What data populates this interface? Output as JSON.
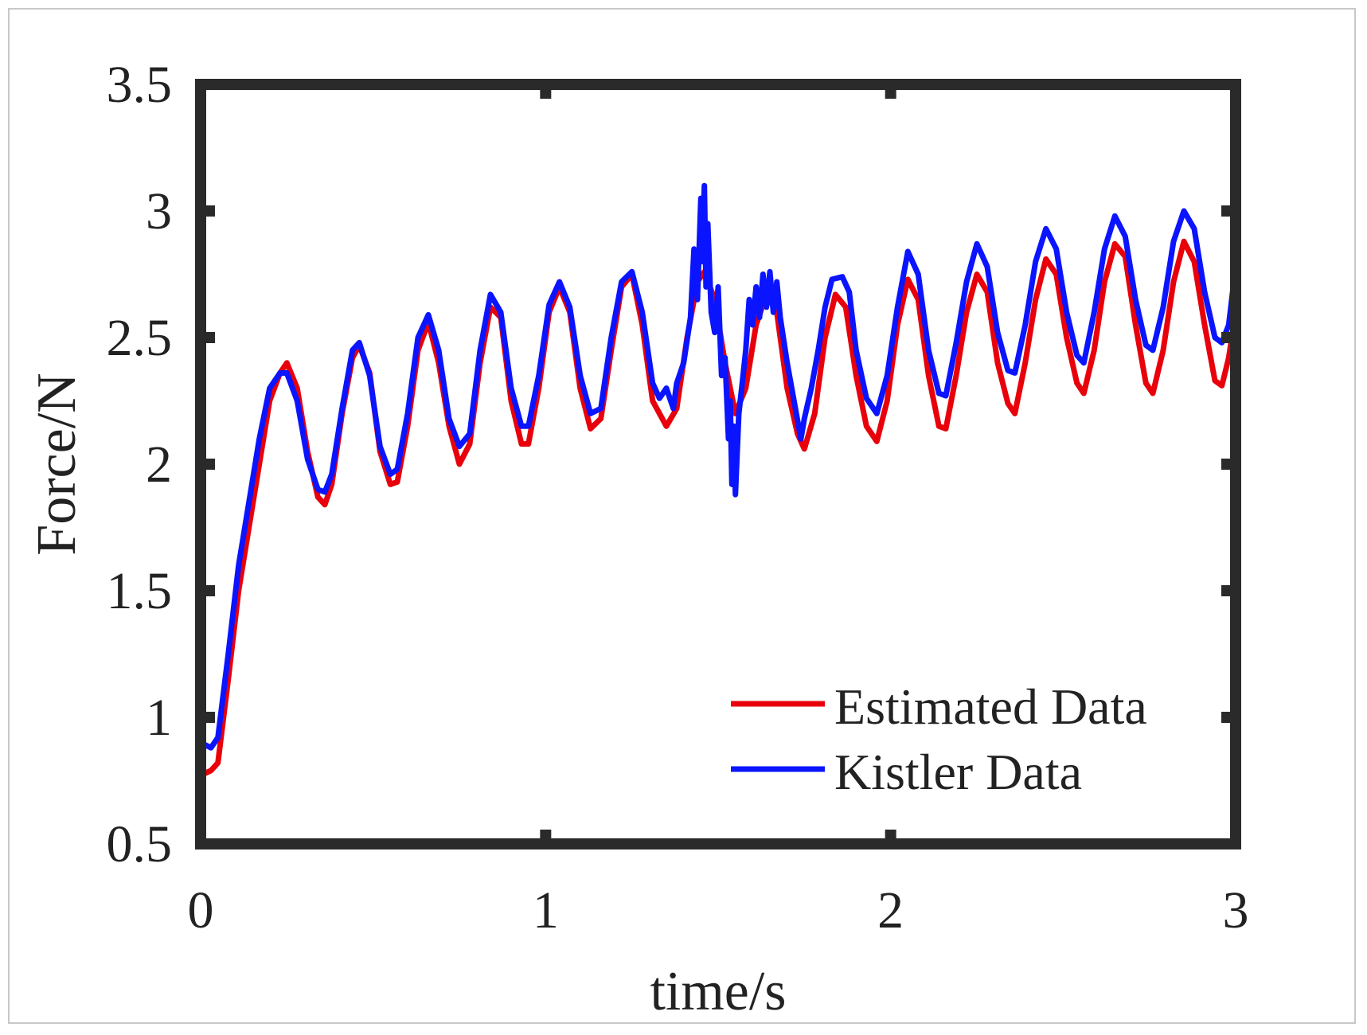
{
  "chart_data": {
    "type": "line",
    "title": "",
    "xlabel": "time/s",
    "ylabel": "Force/N",
    "xlim": [
      0,
      3
    ],
    "ylim": [
      0.5,
      3.5
    ],
    "xticks": [
      0,
      1,
      2,
      3
    ],
    "xtick_labels": [
      "0",
      "1",
      "2",
      "3"
    ],
    "yticks": [
      0.5,
      1,
      1.5,
      2,
      2.5,
      3,
      3.5
    ],
    "ytick_labels": [
      "0.5",
      "1",
      "1.5",
      "2",
      "2.5",
      "3",
      "3.5"
    ],
    "grid": false,
    "legend_position": "bottom-right",
    "series": [
      {
        "name": "Estimated Data",
        "color": "#e8000b",
        "points": [
          [
            0.0,
            0.77
          ],
          [
            0.03,
            0.79
          ],
          [
            0.05,
            0.82
          ],
          [
            0.08,
            1.15
          ],
          [
            0.11,
            1.5
          ],
          [
            0.14,
            1.75
          ],
          [
            0.17,
            2.0
          ],
          [
            0.2,
            2.25
          ],
          [
            0.23,
            2.36
          ],
          [
            0.25,
            2.4
          ],
          [
            0.28,
            2.3
          ],
          [
            0.31,
            2.05
          ],
          [
            0.34,
            1.87
          ],
          [
            0.36,
            1.84
          ],
          [
            0.38,
            1.92
          ],
          [
            0.41,
            2.2
          ],
          [
            0.44,
            2.42
          ],
          [
            0.46,
            2.47
          ],
          [
            0.49,
            2.36
          ],
          [
            0.52,
            2.05
          ],
          [
            0.55,
            1.92
          ],
          [
            0.57,
            1.93
          ],
          [
            0.6,
            2.15
          ],
          [
            0.63,
            2.45
          ],
          [
            0.66,
            2.56
          ],
          [
            0.69,
            2.4
          ],
          [
            0.72,
            2.15
          ],
          [
            0.75,
            2.0
          ],
          [
            0.78,
            2.08
          ],
          [
            0.81,
            2.4
          ],
          [
            0.84,
            2.62
          ],
          [
            0.87,
            2.58
          ],
          [
            0.9,
            2.25
          ],
          [
            0.93,
            2.08
          ],
          [
            0.95,
            2.08
          ],
          [
            0.98,
            2.3
          ],
          [
            1.01,
            2.6
          ],
          [
            1.04,
            2.7
          ],
          [
            1.07,
            2.6
          ],
          [
            1.1,
            2.3
          ],
          [
            1.13,
            2.14
          ],
          [
            1.16,
            2.18
          ],
          [
            1.19,
            2.45
          ],
          [
            1.22,
            2.7
          ],
          [
            1.25,
            2.75
          ],
          [
            1.28,
            2.55
          ],
          [
            1.31,
            2.25
          ],
          [
            1.35,
            2.15
          ],
          [
            1.38,
            2.22
          ],
          [
            1.41,
            2.5
          ],
          [
            1.44,
            2.72
          ],
          [
            1.46,
            2.76
          ],
          [
            1.49,
            2.65
          ],
          [
            1.52,
            2.4
          ],
          [
            1.55,
            2.2
          ],
          [
            1.58,
            2.3
          ],
          [
            1.61,
            2.55
          ],
          [
            1.64,
            2.67
          ],
          [
            1.67,
            2.6
          ],
          [
            1.7,
            2.3
          ],
          [
            1.73,
            2.12
          ],
          [
            1.75,
            2.06
          ],
          [
            1.78,
            2.2
          ],
          [
            1.81,
            2.5
          ],
          [
            1.84,
            2.67
          ],
          [
            1.87,
            2.62
          ],
          [
            1.9,
            2.35
          ],
          [
            1.93,
            2.15
          ],
          [
            1.96,
            2.09
          ],
          [
            1.99,
            2.25
          ],
          [
            2.02,
            2.55
          ],
          [
            2.05,
            2.73
          ],
          [
            2.08,
            2.65
          ],
          [
            2.11,
            2.35
          ],
          [
            2.14,
            2.15
          ],
          [
            2.16,
            2.14
          ],
          [
            2.19,
            2.35
          ],
          [
            2.22,
            2.6
          ],
          [
            2.25,
            2.75
          ],
          [
            2.28,
            2.68
          ],
          [
            2.31,
            2.4
          ],
          [
            2.34,
            2.24
          ],
          [
            2.36,
            2.2
          ],
          [
            2.39,
            2.4
          ],
          [
            2.42,
            2.65
          ],
          [
            2.45,
            2.81
          ],
          [
            2.48,
            2.75
          ],
          [
            2.51,
            2.5
          ],
          [
            2.54,
            2.32
          ],
          [
            2.56,
            2.28
          ],
          [
            2.59,
            2.45
          ],
          [
            2.62,
            2.72
          ],
          [
            2.65,
            2.87
          ],
          [
            2.68,
            2.82
          ],
          [
            2.71,
            2.55
          ],
          [
            2.74,
            2.32
          ],
          [
            2.76,
            2.28
          ],
          [
            2.79,
            2.45
          ],
          [
            2.82,
            2.72
          ],
          [
            2.85,
            2.88
          ],
          [
            2.88,
            2.8
          ],
          [
            2.91,
            2.55
          ],
          [
            2.94,
            2.33
          ],
          [
            2.96,
            2.31
          ],
          [
            2.98,
            2.42
          ],
          [
            3.0,
            2.6
          ]
        ]
      },
      {
        "name": "Kistler Data",
        "color": "#0a14ff",
        "points": [
          [
            0.0,
            0.9
          ],
          [
            0.03,
            0.88
          ],
          [
            0.05,
            0.92
          ],
          [
            0.08,
            1.25
          ],
          [
            0.11,
            1.6
          ],
          [
            0.14,
            1.85
          ],
          [
            0.17,
            2.1
          ],
          [
            0.2,
            2.3
          ],
          [
            0.23,
            2.36
          ],
          [
            0.25,
            2.36
          ],
          [
            0.28,
            2.25
          ],
          [
            0.31,
            2.02
          ],
          [
            0.34,
            1.9
          ],
          [
            0.36,
            1.89
          ],
          [
            0.38,
            1.96
          ],
          [
            0.41,
            2.22
          ],
          [
            0.44,
            2.45
          ],
          [
            0.46,
            2.48
          ],
          [
            0.49,
            2.35
          ],
          [
            0.52,
            2.07
          ],
          [
            0.55,
            1.96
          ],
          [
            0.57,
            1.98
          ],
          [
            0.6,
            2.2
          ],
          [
            0.63,
            2.5
          ],
          [
            0.66,
            2.59
          ],
          [
            0.69,
            2.45
          ],
          [
            0.72,
            2.18
          ],
          [
            0.75,
            2.07
          ],
          [
            0.78,
            2.12
          ],
          [
            0.81,
            2.45
          ],
          [
            0.84,
            2.67
          ],
          [
            0.87,
            2.6
          ],
          [
            0.9,
            2.3
          ],
          [
            0.93,
            2.15
          ],
          [
            0.95,
            2.15
          ],
          [
            0.98,
            2.35
          ],
          [
            1.01,
            2.63
          ],
          [
            1.04,
            2.72
          ],
          [
            1.07,
            2.62
          ],
          [
            1.1,
            2.35
          ],
          [
            1.13,
            2.2
          ],
          [
            1.16,
            2.22
          ],
          [
            1.19,
            2.5
          ],
          [
            1.22,
            2.72
          ],
          [
            1.25,
            2.76
          ],
          [
            1.28,
            2.6
          ],
          [
            1.31,
            2.32
          ],
          [
            1.33,
            2.26
          ],
          [
            1.35,
            2.3
          ],
          [
            1.37,
            2.22
          ],
          [
            1.38,
            2.32
          ],
          [
            1.4,
            2.4
          ],
          [
            1.42,
            2.58
          ],
          [
            1.43,
            2.85
          ],
          [
            1.44,
            2.65
          ],
          [
            1.45,
            3.05
          ],
          [
            1.455,
            2.8
          ],
          [
            1.46,
            3.1
          ],
          [
            1.465,
            2.7
          ],
          [
            1.47,
            2.95
          ],
          [
            1.48,
            2.6
          ],
          [
            1.49,
            2.52
          ],
          [
            1.5,
            2.7
          ],
          [
            1.51,
            2.35
          ],
          [
            1.52,
            2.42
          ],
          [
            1.53,
            2.1
          ],
          [
            1.535,
            2.25
          ],
          [
            1.54,
            1.92
          ],
          [
            1.545,
            2.15
          ],
          [
            1.55,
            1.88
          ],
          [
            1.56,
            2.2
          ],
          [
            1.57,
            2.32
          ],
          [
            1.58,
            2.45
          ],
          [
            1.59,
            2.65
          ],
          [
            1.6,
            2.55
          ],
          [
            1.61,
            2.7
          ],
          [
            1.62,
            2.58
          ],
          [
            1.63,
            2.75
          ],
          [
            1.64,
            2.62
          ],
          [
            1.65,
            2.76
          ],
          [
            1.66,
            2.6
          ],
          [
            1.67,
            2.72
          ],
          [
            1.68,
            2.58
          ],
          [
            1.7,
            2.4
          ],
          [
            1.72,
            2.25
          ],
          [
            1.74,
            2.1
          ],
          [
            1.75,
            2.18
          ],
          [
            1.77,
            2.3
          ],
          [
            1.79,
            2.45
          ],
          [
            1.81,
            2.62
          ],
          [
            1.83,
            2.73
          ],
          [
            1.86,
            2.74
          ],
          [
            1.88,
            2.68
          ],
          [
            1.9,
            2.45
          ],
          [
            1.93,
            2.26
          ],
          [
            1.96,
            2.2
          ],
          [
            1.99,
            2.35
          ],
          [
            2.02,
            2.62
          ],
          [
            2.05,
            2.84
          ],
          [
            2.08,
            2.75
          ],
          [
            2.11,
            2.45
          ],
          [
            2.14,
            2.28
          ],
          [
            2.16,
            2.27
          ],
          [
            2.19,
            2.48
          ],
          [
            2.22,
            2.72
          ],
          [
            2.25,
            2.87
          ],
          [
            2.28,
            2.78
          ],
          [
            2.31,
            2.52
          ],
          [
            2.34,
            2.37
          ],
          [
            2.36,
            2.36
          ],
          [
            2.39,
            2.55
          ],
          [
            2.42,
            2.8
          ],
          [
            2.45,
            2.93
          ],
          [
            2.48,
            2.85
          ],
          [
            2.51,
            2.6
          ],
          [
            2.54,
            2.43
          ],
          [
            2.56,
            2.4
          ],
          [
            2.59,
            2.6
          ],
          [
            2.62,
            2.85
          ],
          [
            2.65,
            2.98
          ],
          [
            2.68,
            2.9
          ],
          [
            2.71,
            2.65
          ],
          [
            2.74,
            2.47
          ],
          [
            2.76,
            2.45
          ],
          [
            2.79,
            2.62
          ],
          [
            2.82,
            2.88
          ],
          [
            2.85,
            3.0
          ],
          [
            2.88,
            2.93
          ],
          [
            2.91,
            2.68
          ],
          [
            2.94,
            2.5
          ],
          [
            2.96,
            2.48
          ],
          [
            2.98,
            2.55
          ],
          [
            3.0,
            2.78
          ]
        ]
      }
    ]
  }
}
